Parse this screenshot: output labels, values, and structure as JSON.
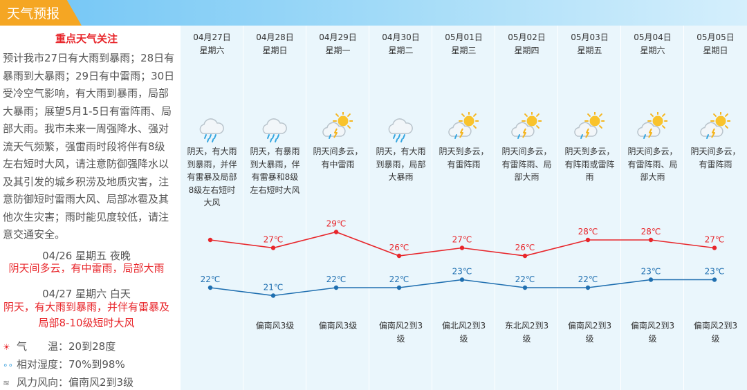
{
  "header": {
    "title": "天气预报"
  },
  "focus": {
    "title": "重点天气关注",
    "text": "预计我市27日有大雨到暴雨；28日有暴雨到大暴雨；29日有中雷雨；30日受冷空气影响，有大雨到暴雨，局部大暴雨；展望5月1-5日有雷阵雨、局部大雨。我市未来一周强降水、强对流天气频繁，强雷雨时段将伴有8级左右短时大风，请注意防御强降水以及其引发的城乡积涝及地质灾害，注意防御短时雷雨大风、局部冰雹及其他次生灾害；雨时能见度较低，请注意交通安全。"
  },
  "periods": [
    {
      "label": "04/26 星期五 夜晚",
      "desc": "阴天间多云，有中雷雨，局部大雨"
    },
    {
      "label": "04/27 星期六 白天",
      "desc": "阴天，有大雨到暴雨，并伴有雷暴及局部8-10级短时大风"
    }
  ],
  "info": [
    {
      "icon": "thermometer-icon",
      "label": "气　　温：",
      "value": "20到28度"
    },
    {
      "icon": "humidity-icon",
      "label": "相对湿度：",
      "value": "70%到98%"
    },
    {
      "icon": "wind-icon",
      "label": "风力风向：",
      "value": "偏南风2到3级"
    }
  ],
  "colors": {
    "high_line": "#e8262b",
    "low_line": "#1f6fb0",
    "accent": "#f5a623",
    "header_bg": "#6fc4f5",
    "panel_bg": "#eaf6fc"
  },
  "days": [
    {
      "date": "04月27日",
      "weekday": "星期六",
      "icon": "cloud-rain-icon",
      "desc": "阴天，有大雨到暴雨，并伴有雷暴及局部8级左右短时大风",
      "wind": ""
    },
    {
      "date": "04月28日",
      "weekday": "星期日",
      "icon": "cloud-rain-icon",
      "desc": "阴天，有暴雨到大暴雨，伴有雷暴和8级左右短时大风",
      "wind": "偏南风3级"
    },
    {
      "date": "04月29日",
      "weekday": "星期一",
      "icon": "sun-cloud-thunder-icon",
      "desc": "阴天间多云，有中雷雨",
      "wind": "偏南风3级"
    },
    {
      "date": "04月30日",
      "weekday": "星期二",
      "icon": "cloud-rain-icon",
      "desc": "阴天，有大雨到暴雨，局部大暴雨",
      "wind": "偏南风2到3级"
    },
    {
      "date": "05月01日",
      "weekday": "星期三",
      "icon": "sun-cloud-thunder-icon",
      "desc": "阴天到多云，有雷阵雨",
      "wind": "偏北风2到3级"
    },
    {
      "date": "05月02日",
      "weekday": "星期四",
      "icon": "sun-cloud-thunder-icon",
      "desc": "阴天间多云，有雷阵雨、局部大雨",
      "wind": "东北风2到3级"
    },
    {
      "date": "05月03日",
      "weekday": "星期五",
      "icon": "sun-cloud-thunder-icon",
      "desc": "阴天到多云，有阵雨或雷阵雨",
      "wind": "偏南风2到3级"
    },
    {
      "date": "05月04日",
      "weekday": "星期六",
      "icon": "sun-cloud-thunder-icon",
      "desc": "阴天间多云，有雷阵雨、局部大雨",
      "wind": "偏南风2到3级"
    },
    {
      "date": "05月05日",
      "weekday": "星期日",
      "icon": "sun-cloud-thunder-icon",
      "desc": "阴天间多云，有雷阵雨",
      "wind": "偏南风2到3级"
    }
  ],
  "chart_data": {
    "type": "line",
    "categories": [
      "04月27日",
      "04月28日",
      "04月29日",
      "04月30日",
      "05月01日",
      "05月02日",
      "05月03日",
      "05月04日",
      "05月05日"
    ],
    "unit": "℃",
    "series": [
      {
        "values": [
          null,
          27,
          29,
          26,
          27,
          26,
          28,
          28,
          27
        ],
        "labels": [
          "",
          "27℃",
          "29℃",
          "26℃",
          "27℃",
          "26℃",
          "28℃",
          "28℃",
          "27℃"
        ]
      },
      {
        "values": [
          22,
          21,
          22,
          22,
          23,
          22,
          22,
          23,
          23
        ],
        "labels": [
          "22℃",
          "21℃",
          "22℃",
          "22℃",
          "23℃",
          "22℃",
          "22℃",
          "23℃",
          "23℃"
        ]
      }
    ],
    "high_first_point": 28,
    "ylim": [
      20,
      30
    ],
    "grid": false,
    "legend": "none"
  }
}
